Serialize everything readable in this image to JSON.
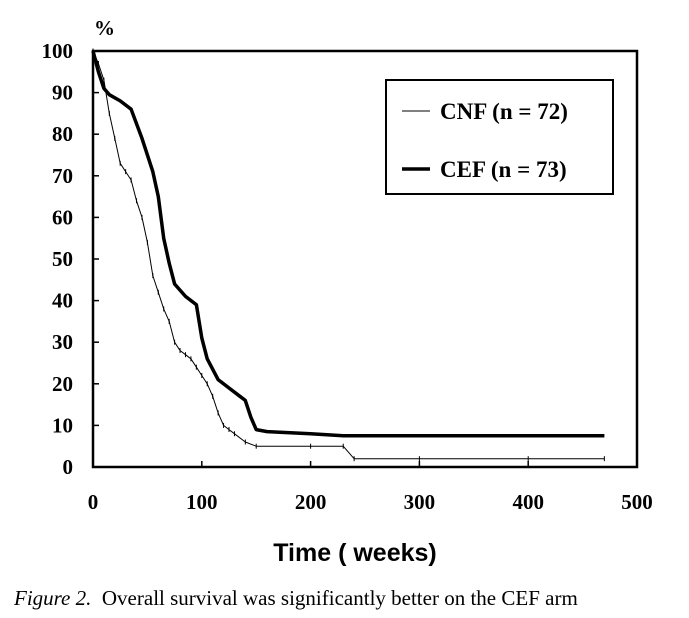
{
  "chart_data": {
    "type": "line",
    "title": "",
    "ylabel": "%",
    "xlabel": "Time ( weeks)",
    "xlim": [
      0,
      500
    ],
    "ylim": [
      0,
      100
    ],
    "x_ticks": [
      "0",
      "100",
      "200",
      "300",
      "400",
      "500"
    ],
    "y_ticks": [
      "0",
      "10",
      "20",
      "30",
      "40",
      "50",
      "60",
      "70",
      "80",
      "90",
      "100"
    ],
    "grid": false,
    "legend_position": "top-right",
    "series": [
      {
        "name": "CNF (n = 72)",
        "style": "thin-line-with-tick-marks",
        "points": [
          [
            0,
            100
          ],
          [
            5,
            97
          ],
          [
            10,
            93
          ],
          [
            15,
            85
          ],
          [
            20,
            79
          ],
          [
            25,
            73
          ],
          [
            30,
            71
          ],
          [
            35,
            69
          ],
          [
            40,
            64
          ],
          [
            45,
            60
          ],
          [
            50,
            54
          ],
          [
            55,
            46
          ],
          [
            60,
            42
          ],
          [
            65,
            38
          ],
          [
            70,
            35
          ],
          [
            75,
            30
          ],
          [
            80,
            28
          ],
          [
            85,
            27
          ],
          [
            90,
            26
          ],
          [
            95,
            24
          ],
          [
            100,
            22
          ],
          [
            105,
            20
          ],
          [
            110,
            17
          ],
          [
            115,
            13
          ],
          [
            120,
            10
          ],
          [
            125,
            9
          ],
          [
            130,
            8
          ],
          [
            140,
            6
          ],
          [
            150,
            5
          ],
          [
            200,
            5
          ],
          [
            230,
            5
          ],
          [
            240,
            2
          ],
          [
            300,
            2
          ],
          [
            400,
            2
          ],
          [
            470,
            2
          ]
        ]
      },
      {
        "name": "CEF (n = 73)",
        "style": "thick-line",
        "points": [
          [
            0,
            100
          ],
          [
            5,
            95
          ],
          [
            10,
            91
          ],
          [
            15,
            89.5
          ],
          [
            25,
            88
          ],
          [
            35,
            86
          ],
          [
            45,
            79
          ],
          [
            55,
            71
          ],
          [
            60,
            65
          ],
          [
            65,
            55
          ],
          [
            70,
            49
          ],
          [
            75,
            44
          ],
          [
            85,
            41
          ],
          [
            95,
            39
          ],
          [
            100,
            31
          ],
          [
            105,
            26
          ],
          [
            115,
            21
          ],
          [
            125,
            19
          ],
          [
            135,
            17
          ],
          [
            140,
            16
          ],
          [
            145,
            12
          ],
          [
            150,
            9
          ],
          [
            160,
            8.5
          ],
          [
            200,
            8
          ],
          [
            230,
            7.5
          ],
          [
            300,
            7.5
          ],
          [
            400,
            7.5
          ],
          [
            470,
            7.5
          ]
        ]
      }
    ]
  },
  "caption": {
    "label": "Figure 2.",
    "text": "Overall survival was significantly better on the CEF arm"
  }
}
